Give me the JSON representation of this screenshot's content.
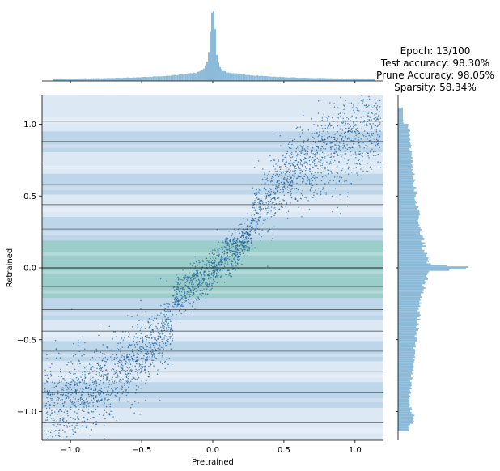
{
  "chart_data": {
    "type": "scatter",
    "title_lines": [
      "Epoch: 13/100",
      "Test accuracy: 98.30%",
      "Prune Accuracy: 98.05%",
      "Sparsity: 58.34%"
    ],
    "xlabel": "Pretrained",
    "ylabel": "Retrained",
    "xlim": [
      -1.2,
      1.2
    ],
    "ylim": [
      -1.2,
      1.2
    ],
    "x_ticks": [
      -1.0,
      -0.5,
      0.0,
      0.5,
      1.0
    ],
    "x_tick_labels": [
      "−1.0",
      "−0.5",
      "0.0",
      "0.5",
      "1.0"
    ],
    "y_ticks": [
      1.0,
      0.5,
      0.0,
      -0.5,
      -1.0
    ],
    "y_tick_labels": [
      "1.0",
      "0.5",
      "0.0",
      "−0.5",
      "−1.0"
    ],
    "quantization_levels": [
      1.02,
      0.88,
      0.73,
      0.58,
      0.44,
      0.27,
      0.11,
      0.0,
      -0.13,
      -0.29,
      -0.44,
      -0.58,
      -0.72,
      -0.87,
      -1.08
    ],
    "pruned_band": [
      -0.28,
      0.27
    ],
    "colors": {
      "points": "#1f5f99",
      "band_light": "#dce9f4",
      "band_dark": "#b8d2e8",
      "prune_band": "#8fc8c2",
      "hist": "#8cbad9",
      "level_line": "#2a2a2a"
    }
  }
}
